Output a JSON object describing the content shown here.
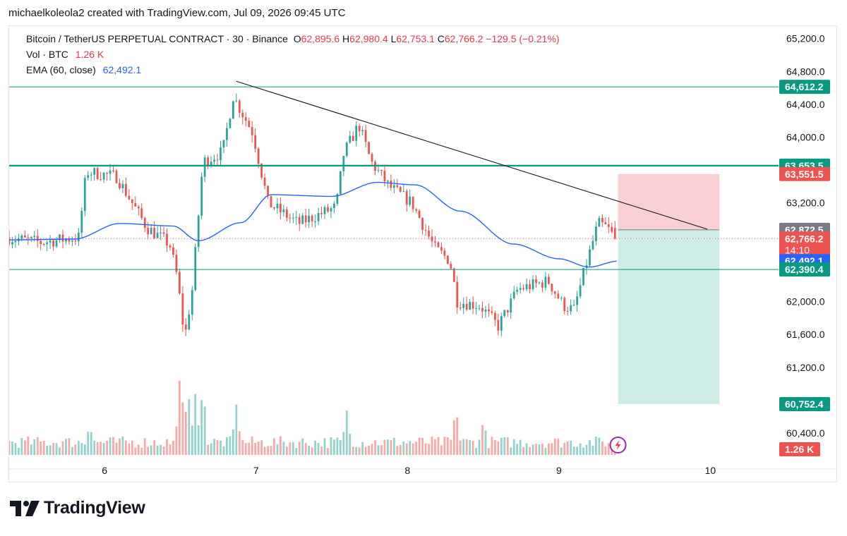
{
  "header": {
    "attribution": "michaelkoleola2 created with TradingView.com, Jul 09, 2026 09:45 UTC"
  },
  "legend": {
    "symbol": "Bitcoin / TetherUS PERPETUAL CONTRACT · 30 · Binance",
    "o_label": "O",
    "o_value": "62,895.6",
    "h_label": "H",
    "h_value": "62,980.4",
    "l_label": "L",
    "l_value": "62,753.1",
    "c_label": "C",
    "c_value": "62,766.2",
    "change": "−129.5 (−0.21%)",
    "vol_label": "Vol · BTC",
    "vol_value": "1.26 K",
    "ema_label": "EMA (60, close)",
    "ema_value": "62,492.1"
  },
  "brand": {
    "name": "TradingView"
  },
  "colors": {
    "up": "#26a69a",
    "down": "#ef5350",
    "ema": "#2962ff",
    "level": "#089981",
    "stop_zone": "#f7c8cd",
    "target_zone": "#c9ebe3",
    "trendline": "#131722",
    "axis_text": "#131722"
  },
  "chart_data": {
    "type": "candlestick",
    "symbol": "Bitcoin / TetherUS PERPETUAL CONTRACT",
    "interval": "30",
    "exchange": "Binance",
    "ylim": [
      60100,
      65300
    ],
    "y_ticks": [
      60400,
      60800,
      61200,
      61600,
      62000,
      62400,
      62800,
      63200,
      63600,
      64000,
      64400,
      64800,
      65200
    ],
    "y_tick_labels": [
      "60,400.0",
      "",
      "61,200.0",
      "61,600.0",
      "62,000.0",
      "",
      "",
      "63,200.0",
      "",
      "64,000.0",
      "64,400.0",
      "64,800.0",
      "65,200.0"
    ],
    "x_day_labels": [
      {
        "label": "6",
        "day": 6
      },
      {
        "label": "7",
        "day": 7
      },
      {
        "label": "8",
        "day": 8
      },
      {
        "label": "9",
        "day": 9
      },
      {
        "label": "10",
        "day": 10
      }
    ],
    "x_range_days": [
      5.37,
      10.45
    ],
    "candle_interval_days": 0.0208333,
    "anchors": [
      {
        "t": 5.37,
        "p": 62780
      },
      {
        "t": 5.6,
        "p": 62720
      },
      {
        "t": 5.85,
        "p": 62780
      },
      {
        "t": 5.9,
        "p": 63580
      },
      {
        "t": 6.1,
        "p": 63520
      },
      {
        "t": 6.3,
        "p": 62900
      },
      {
        "t": 6.45,
        "p": 62700
      },
      {
        "t": 6.5,
        "p": 62300
      },
      {
        "t": 6.55,
        "p": 61550
      },
      {
        "t": 6.6,
        "p": 62150
      },
      {
        "t": 6.67,
        "p": 63700
      },
      {
        "t": 6.8,
        "p": 63820
      },
      {
        "t": 6.87,
        "p": 64500
      },
      {
        "t": 7.0,
        "p": 64050
      },
      {
        "t": 7.1,
        "p": 63200
      },
      {
        "t": 7.3,
        "p": 62950
      },
      {
        "t": 7.55,
        "p": 63150
      },
      {
        "t": 7.6,
        "p": 63800
      },
      {
        "t": 7.7,
        "p": 64150
      },
      {
        "t": 7.78,
        "p": 63700
      },
      {
        "t": 7.9,
        "p": 63400
      },
      {
        "t": 8.05,
        "p": 63200
      },
      {
        "t": 8.2,
        "p": 62650
      },
      {
        "t": 8.3,
        "p": 62500
      },
      {
        "t": 8.35,
        "p": 62000
      },
      {
        "t": 8.5,
        "p": 61950
      },
      {
        "t": 8.62,
        "p": 61700
      },
      {
        "t": 8.75,
        "p": 62150
      },
      {
        "t": 8.95,
        "p": 62250
      },
      {
        "t": 9.05,
        "p": 61950
      },
      {
        "t": 9.12,
        "p": 61900
      },
      {
        "t": 9.2,
        "p": 62450
      },
      {
        "t": 9.28,
        "p": 62950
      },
      {
        "t": 9.34,
        "p": 62900
      },
      {
        "t": 9.39,
        "p": 62766
      }
    ],
    "last_candle": {
      "open": 62895.6,
      "high": 62980.4,
      "low": 62753.1,
      "close": 62766.2
    },
    "ema_anchors": [
      {
        "t": 5.37,
        "p": 62750
      },
      {
        "t": 5.8,
        "p": 62760
      },
      {
        "t": 6.1,
        "p": 62950
      },
      {
        "t": 6.45,
        "p": 62920
      },
      {
        "t": 6.62,
        "p": 62740
      },
      {
        "t": 6.9,
        "p": 62960
      },
      {
        "t": 7.1,
        "p": 63300
      },
      {
        "t": 7.5,
        "p": 63280
      },
      {
        "t": 7.8,
        "p": 63450
      },
      {
        "t": 8.05,
        "p": 63420
      },
      {
        "t": 8.35,
        "p": 63100
      },
      {
        "t": 8.7,
        "p": 62700
      },
      {
        "t": 9.0,
        "p": 62520
      },
      {
        "t": 9.2,
        "p": 62420
      },
      {
        "t": 9.39,
        "p": 62492.1
      }
    ],
    "volume": {
      "max_label": "1.26 K",
      "spikes": [
        {
          "t": 5.9,
          "v": 0.35
        },
        {
          "t": 6.5,
          "v": 0.95
        },
        {
          "t": 6.55,
          "v": 0.75
        },
        {
          "t": 6.6,
          "v": 0.7
        },
        {
          "t": 6.65,
          "v": 0.8
        },
        {
          "t": 6.87,
          "v": 0.55
        },
        {
          "t": 7.6,
          "v": 0.5
        },
        {
          "t": 8.32,
          "v": 0.55
        },
        {
          "t": 8.5,
          "v": 0.4
        }
      ]
    },
    "levels": [
      {
        "price": 64612.2,
        "label": "64,612.2",
        "line": "thin",
        "color": "#089981"
      },
      {
        "price": 63653.5,
        "label": "63,653.5",
        "line": "thick",
        "color": "#089981"
      },
      {
        "price": 62390.4,
        "label": "62,390.4",
        "line": "thin",
        "color": "#089981"
      }
    ],
    "trendline": [
      {
        "t": 6.87,
        "p": 64680
      },
      {
        "t": 9.98,
        "p": 62880
      }
    ],
    "position": {
      "t_start": 9.39,
      "t_end": 10.06,
      "entry": 62872.5,
      "entry_label": "62,872.5",
      "stop": 63551.5,
      "stop_label": "63,551.5",
      "target": 60752.4,
      "target_label": "60,752.4"
    },
    "last_price": {
      "price": 62766.2,
      "label": "62,766.2",
      "countdown": "14:10"
    },
    "ema_price": {
      "price": 62492.1,
      "label": "62,492.1"
    }
  }
}
